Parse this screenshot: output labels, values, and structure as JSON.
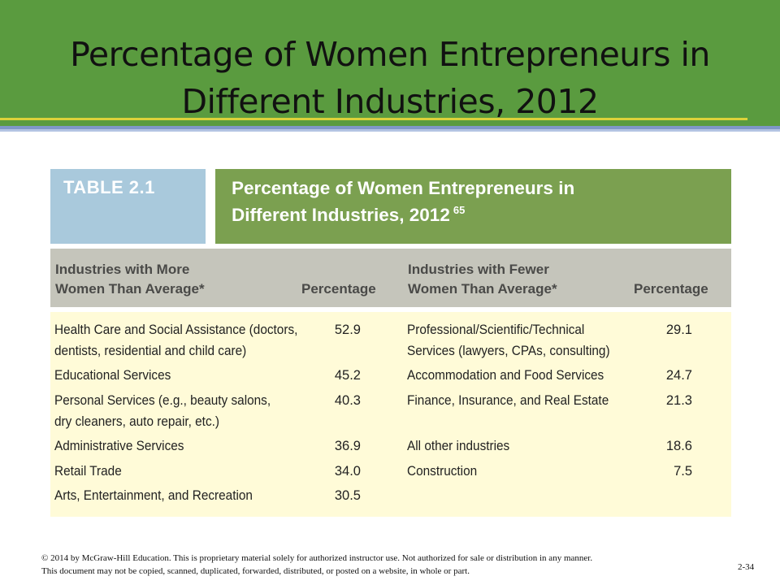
{
  "slide": {
    "title_line1": "Percentage of Women Entrepreneurs in",
    "title_line2": "Different Industries, 2012",
    "page_number": "2-34"
  },
  "table": {
    "label": "TABLE 2.1",
    "title_line1": "Percentage of Women Entrepreneurs in",
    "title_line2": "Different Industries, 2012",
    "title_ref": "65",
    "headers": {
      "left_industry_line1": "Industries with More",
      "left_industry_line2": "Women Than Average*",
      "left_pct": "Percentage",
      "right_industry_line1": "Industries with Fewer",
      "right_industry_line2": "Women Than Average*",
      "right_pct": "Percentage"
    },
    "more_rows": [
      {
        "line1": "Health Care and Social Assistance (doctors,",
        "line2": "dentists, residential and child care)",
        "value": "52.9"
      },
      {
        "line1": "Educational Services",
        "line2": "",
        "value": "45.2"
      },
      {
        "line1": "Personal Services (e.g., beauty salons,",
        "line2": "dry cleaners, auto repair, etc.)",
        "value": "40.3"
      },
      {
        "line1": "Administrative Services",
        "line2": "",
        "value": "36.9"
      },
      {
        "line1": "Retail Trade",
        "line2": "",
        "value": "34.0"
      },
      {
        "line1": "Arts, Entertainment, and Recreation",
        "line2": "",
        "value": "30.5"
      }
    ],
    "fewer_rows": [
      {
        "line1": "Professional/Scientific/Technical",
        "line2": "Services (lawyers, CPAs, consulting)",
        "value": "29.1"
      },
      {
        "line1": "Accommodation and Food Services",
        "line2": "",
        "value": "24.7"
      },
      {
        "line1": "Finance, Insurance, and Real Estate",
        "line2": "",
        "value": "21.3"
      },
      {
        "line1": "All other industries",
        "line2": "",
        "value": "18.6"
      },
      {
        "line1": "Construction",
        "line2": "",
        "value": "7.5"
      }
    ]
  },
  "footer": {
    "line1": "© 2014 by McGraw-Hill Education. This is proprietary material solely for authorized instructor use. Not authorized for sale or distribution in any manner.",
    "line2": "This document may not be copied, scanned, duplicated, forwarded, distributed, or posted on a website, in whole or part."
  },
  "colors": {
    "title_bar": "#5a9b3f",
    "label_box": "#a9c9dc",
    "title_box": "#7ba050",
    "header_row": "#c5c5bb",
    "body_bg": "#fffbd8"
  }
}
